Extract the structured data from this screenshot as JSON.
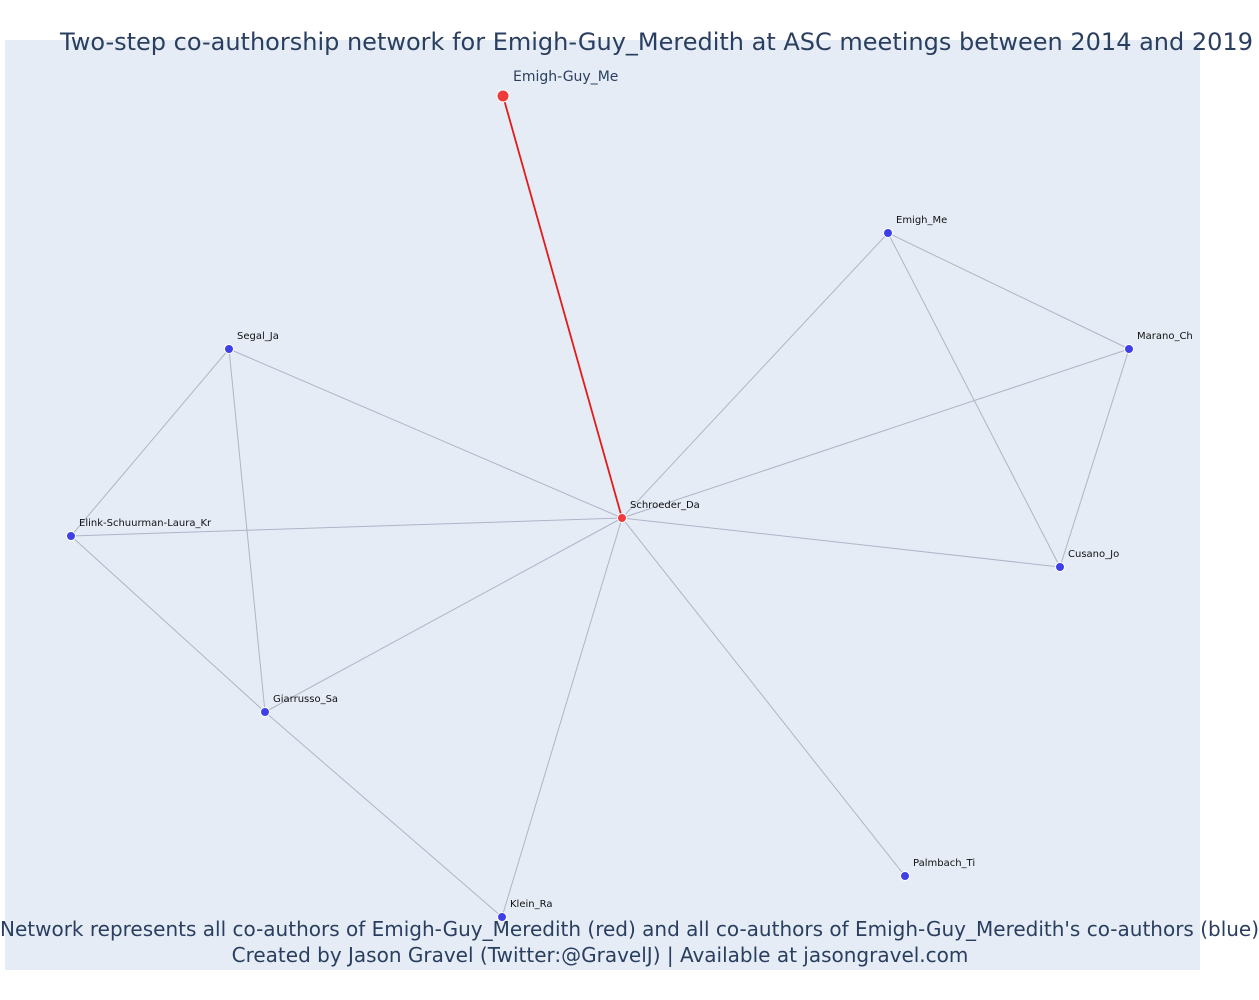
{
  "title": "Two-step co-authorship network for Emigh-Guy_Meredith at ASC meetings between 2014 and 2019",
  "footer": {
    "line1": "Network represents all co-authors of Emigh-Guy_Meredith (red) and all co-authors of Emigh-Guy_Meredith's co-authors (blue)",
    "line2": "Created by Jason Gravel (Twitter:@GravelJ) | Available at jasongravel.com"
  },
  "colors": {
    "focal": "#ef3b3b",
    "coauthor": "#3f3fe8",
    "focal_edge": "#e31a1c",
    "edge": "#b0b4c8",
    "background": "#e5ecf6",
    "text": "#2a3f5f"
  },
  "nodes": [
    {
      "id": "emigh_guy_me",
      "label": "Emigh-Guy_Me",
      "group": "focal"
    },
    {
      "id": "schroeder_da",
      "label": "Schroeder_Da",
      "group": "focal"
    },
    {
      "id": "emigh_me",
      "label": "Emigh_Me",
      "group": "coauthor"
    },
    {
      "id": "marano_ch",
      "label": "Marano_Ch",
      "group": "coauthor"
    },
    {
      "id": "cusano_jo",
      "label": "Cusano_Jo",
      "group": "coauthor"
    },
    {
      "id": "segal_ja",
      "label": "Segal_Ja",
      "group": "coauthor"
    },
    {
      "id": "elink",
      "label": "Elink-Schuurman-Laura_Kr",
      "group": "coauthor"
    },
    {
      "id": "giarrusso_sa",
      "label": "Giarrusso_Sa",
      "group": "coauthor"
    },
    {
      "id": "klein_ra",
      "label": "Klein_Ra",
      "group": "coauthor"
    },
    {
      "id": "palmbach_ti",
      "label": "Palmbach_Ti",
      "group": "coauthor"
    }
  ],
  "edges": [
    {
      "source": "emigh_guy_me",
      "target": "schroeder_da",
      "type": "focal"
    },
    {
      "source": "schroeder_da",
      "target": "emigh_me",
      "type": "normal"
    },
    {
      "source": "schroeder_da",
      "target": "marano_ch",
      "type": "normal"
    },
    {
      "source": "schroeder_da",
      "target": "cusano_jo",
      "type": "normal"
    },
    {
      "source": "schroeder_da",
      "target": "segal_ja",
      "type": "normal"
    },
    {
      "source": "schroeder_da",
      "target": "elink",
      "type": "normal"
    },
    {
      "source": "schroeder_da",
      "target": "giarrusso_sa",
      "type": "normal"
    },
    {
      "source": "schroeder_da",
      "target": "klein_ra",
      "type": "normal"
    },
    {
      "source": "schroeder_da",
      "target": "palmbach_ti",
      "type": "normal"
    },
    {
      "source": "emigh_me",
      "target": "marano_ch",
      "type": "normal"
    },
    {
      "source": "emigh_me",
      "target": "cusano_jo",
      "type": "normal"
    },
    {
      "source": "marano_ch",
      "target": "cusano_jo",
      "type": "normal"
    },
    {
      "source": "segal_ja",
      "target": "elink",
      "type": "normal"
    },
    {
      "source": "segal_ja",
      "target": "giarrusso_sa",
      "type": "normal"
    },
    {
      "source": "elink",
      "target": "giarrusso_sa",
      "type": "normal"
    },
    {
      "source": "giarrusso_sa",
      "target": "klein_ra",
      "type": "normal"
    }
  ]
}
